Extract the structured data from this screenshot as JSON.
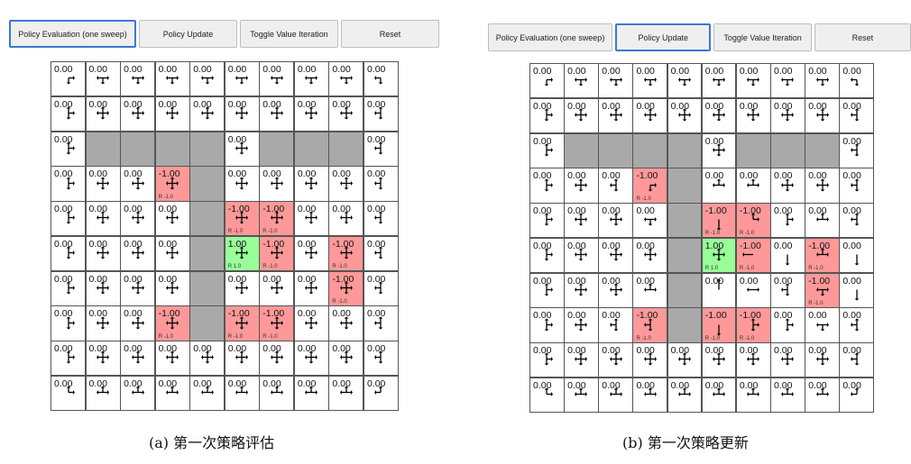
{
  "panels": [
    {
      "buttons": [
        "Policy Evaluation (one sweep)",
        "Policy Update",
        "Toggle Value Iteration",
        "Reset"
      ],
      "active_button": 0,
      "caption": "(a) 第一次策略评估",
      "types": [
        "nnnnnnnnnn",
        "nnnnnnnnnn",
        "nwwwwnwwwn",
        "nnnrwnnnnn",
        "nnnnwrrnnn",
        "nnnnwgrnrn",
        "nnnnwnnnrn",
        "nnnrwrrnnn",
        "nnnnnnnnnn",
        "nnnnnnnnnn"
      ],
      "values": [
        [
          "0.00",
          "0.00",
          "0.00",
          "0.00",
          "0.00",
          "0.00",
          "0.00",
          "0.00",
          "0.00",
          "0.00"
        ],
        [
          "0.00",
          "0.00",
          "0.00",
          "0.00",
          "0.00",
          "0.00",
          "0.00",
          "0.00",
          "0.00",
          "0.00"
        ],
        [
          "0.00",
          "",
          "",
          "",
          "",
          "0.00",
          "",
          "",
          "",
          "0.00"
        ],
        [
          "0.00",
          "0.00",
          "0.00",
          "-1.00",
          "",
          "0.00",
          "0.00",
          "0.00",
          "0.00",
          "0.00"
        ],
        [
          "0.00",
          "0.00",
          "0.00",
          "0.00",
          "",
          "-1.00",
          "-1.00",
          "0.00",
          "0.00",
          "0.00"
        ],
        [
          "0.00",
          "0.00",
          "0.00",
          "0.00",
          "",
          "1.00",
          "-1.00",
          "0.00",
          "-1.00",
          "0.00"
        ],
        [
          "0.00",
          "0.00",
          "0.00",
          "0.00",
          "",
          "0.00",
          "0.00",
          "0.00",
          "-1.00",
          "0.00"
        ],
        [
          "0.00",
          "0.00",
          "0.00",
          "-1.00",
          "",
          "-1.00",
          "-1.00",
          "0.00",
          "0.00",
          "0.00"
        ],
        [
          "0.00",
          "0.00",
          "0.00",
          "0.00",
          "0.00",
          "0.00",
          "0.00",
          "0.00",
          "0.00",
          "0.00"
        ],
        [
          "0.00",
          "0.00",
          "0.00",
          "0.00",
          "0.00",
          "0.00",
          "0.00",
          "0.00",
          "0.00",
          "0.00"
        ]
      ],
      "rewards": [
        [
          "",
          "",
          "",
          "",
          "",
          "",
          "",
          "",
          "",
          ""
        ],
        [
          "",
          "",
          "",
          "",
          "",
          "",
          "",
          "",
          "",
          ""
        ],
        [
          "",
          "",
          "",
          "",
          "",
          "",
          "",
          "",
          "",
          ""
        ],
        [
          "",
          "",
          "",
          "R -1.0",
          "",
          "",
          "",
          "",
          "",
          ""
        ],
        [
          "",
          "",
          "",
          "",
          "",
          "R -1.0",
          "R -1.0",
          "",
          "",
          ""
        ],
        [
          "",
          "",
          "",
          "",
          "",
          "R 1.0",
          "R -1.0",
          "",
          "R -1.0",
          ""
        ],
        [
          "",
          "",
          "",
          "",
          "",
          "",
          "",
          "",
          "R -1.0",
          ""
        ],
        [
          "",
          "",
          "",
          "R -1.0",
          "",
          "R -1.0",
          "R -1.0",
          "",
          "",
          ""
        ],
        [
          "",
          "",
          "",
          "",
          "",
          "",
          "",
          "",
          "",
          ""
        ],
        [
          "",
          "",
          "",
          "",
          "",
          "",
          "",
          "",
          "",
          ""
        ]
      ],
      "arrows": [
        [
          "dr",
          "dlr",
          "dlr",
          "dlr",
          "dlr",
          "dlr",
          "dlr",
          "dlr",
          "dlr",
          "dl"
        ],
        [
          "udr",
          "udlr",
          "udlr",
          "udlr",
          "udlr",
          "udlr",
          "udlr",
          "udlr",
          "udlr",
          "udl"
        ],
        [
          "udr",
          "",
          "",
          "",
          "",
          "udlr",
          "",
          "",
          "",
          "udl"
        ],
        [
          "udr",
          "udlr",
          "udlr",
          "udlr",
          "",
          "udlr",
          "udlr",
          "udlr",
          "udlr",
          "udl"
        ],
        [
          "udr",
          "udlr",
          "udlr",
          "udlr",
          "",
          "udlr",
          "udlr",
          "udlr",
          "udlr",
          "udl"
        ],
        [
          "udr",
          "udlr",
          "udlr",
          "udlr",
          "",
          "udlr",
          "udlr",
          "udlr",
          "udlr",
          "udl"
        ],
        [
          "udr",
          "udlr",
          "udlr",
          "udlr",
          "",
          "udlr",
          "udlr",
          "udlr",
          "udlr",
          "udl"
        ],
        [
          "udr",
          "udlr",
          "udlr",
          "udlr",
          "",
          "udlr",
          "udlr",
          "udlr",
          "udlr",
          "udl"
        ],
        [
          "udr",
          "udlr",
          "udlr",
          "udlr",
          "udlr",
          "udlr",
          "udlr",
          "udlr",
          "udlr",
          "udl"
        ],
        [
          "ur",
          "ulr",
          "ulr",
          "ulr",
          "ulr",
          "ulr",
          "ulr",
          "ulr",
          "ulr",
          "ul"
        ]
      ]
    },
    {
      "buttons": [
        "Policy Evaluation (one sweep)",
        "Policy Update",
        "Toggle Value Iteration",
        "Reset"
      ],
      "active_button": 1,
      "caption": "(b) 第一次策略更新",
      "types": [
        "nnnnnnnnnn",
        "nnnnnnnnnn",
        "nwwwwnwwwn",
        "nnnrwnnnnn",
        "nnnnwrrnnn",
        "nnnnwgrnrn",
        "nnnnwnnnrn",
        "nnnrwrrnnn",
        "nnnnnnnnnn",
        "nnnnnnnnnn"
      ],
      "values": [
        [
          "0.00",
          "0.00",
          "0.00",
          "0.00",
          "0.00",
          "0.00",
          "0.00",
          "0.00",
          "0.00",
          "0.00"
        ],
        [
          "0.00",
          "0.00",
          "0.00",
          "0.00",
          "0.00",
          "0.00",
          "0.00",
          "0.00",
          "0.00",
          "0.00"
        ],
        [
          "0.00",
          "",
          "",
          "",
          "",
          "0.00",
          "",
          "",
          "",
          "0.00"
        ],
        [
          "0.00",
          "0.00",
          "0.00",
          "-1.00",
          "",
          "0.00",
          "0.00",
          "0.00",
          "0.00",
          "0.00"
        ],
        [
          "0.00",
          "0.00",
          "0.00",
          "0.00",
          "",
          "-1.00",
          "-1.00",
          "0.00",
          "0.00",
          "0.00"
        ],
        [
          "0.00",
          "0.00",
          "0.00",
          "0.00",
          "",
          "1.00",
          "-1.00",
          "0.00",
          "-1.00",
          "0.00"
        ],
        [
          "0.00",
          "0.00",
          "0.00",
          "0.00",
          "",
          "0.00",
          "0.00",
          "0.00",
          "-1.00",
          "0.00"
        ],
        [
          "0.00",
          "0.00",
          "0.00",
          "-1.00",
          "",
          "-1.00",
          "-1.00",
          "0.00",
          "0.00",
          "0.00"
        ],
        [
          "0.00",
          "0.00",
          "0.00",
          "0.00",
          "0.00",
          "0.00",
          "0.00",
          "0.00",
          "0.00",
          "0.00"
        ],
        [
          "0.00",
          "0.00",
          "0.00",
          "0.00",
          "0.00",
          "0.00",
          "0.00",
          "0.00",
          "0.00",
          "0.00"
        ]
      ],
      "rewards": [
        [
          "",
          "",
          "",
          "",
          "",
          "",
          "",
          "",
          "",
          ""
        ],
        [
          "",
          "",
          "",
          "",
          "",
          "",
          "",
          "",
          "",
          ""
        ],
        [
          "",
          "",
          "",
          "",
          "",
          "",
          "",
          "",
          "",
          ""
        ],
        [
          "",
          "",
          "",
          "R -1.0",
          "",
          "",
          "",
          "",
          "",
          ""
        ],
        [
          "",
          "",
          "",
          "",
          "",
          "R -1.0",
          "R -1.0",
          "",
          "",
          ""
        ],
        [
          "",
          "",
          "",
          "",
          "",
          "R 1.0",
          "R -1.0",
          "",
          "R -1.0",
          ""
        ],
        [
          "",
          "",
          "",
          "",
          "",
          "",
          "",
          "",
          "R -1.0",
          ""
        ],
        [
          "",
          "",
          "",
          "R -1.0",
          "",
          "R -1.0",
          "R -1.0",
          "",
          "",
          ""
        ],
        [
          "",
          "",
          "",
          "",
          "",
          "",
          "",
          "",
          "",
          ""
        ],
        [
          "",
          "",
          "",
          "",
          "",
          "",
          "",
          "",
          "",
          ""
        ]
      ],
      "arrows": [
        [
          "dr",
          "dlr",
          "dlr",
          "dlr",
          "dlr",
          "dlr",
          "dlr",
          "dlr",
          "dlr",
          "dl"
        ],
        [
          "udr",
          "udlr",
          "udlr",
          "udlr",
          "udlr",
          "udlr",
          "udlr",
          "udlr",
          "udlr",
          "udl"
        ],
        [
          "udr",
          "",
          "",
          "",
          "",
          "udlr",
          "",
          "",
          "",
          "udl"
        ],
        [
          "udr",
          "udlr",
          "udl",
          "dr",
          "",
          "ulr",
          "ulr",
          "udlr",
          "udlr",
          "udl"
        ],
        [
          "udr",
          "udlr",
          "udlr",
          "dlr",
          "",
          "d",
          "ur",
          "udr",
          "ulr",
          "udl"
        ],
        [
          "udr",
          "udlr",
          "udlr",
          "udlr",
          "",
          "udlr",
          "l",
          "d",
          "ulr",
          "d"
        ],
        [
          "udr",
          "udlr",
          "udlr",
          "ulr",
          "",
          "u",
          "lr",
          "udl",
          "dlr",
          "d"
        ],
        [
          "udr",
          "udlr",
          "udl",
          "udl",
          "",
          "d",
          "udr",
          "udr",
          "dlr",
          "udl"
        ],
        [
          "udr",
          "udlr",
          "udlr",
          "udlr",
          "udlr",
          "udlr",
          "udlr",
          "udlr",
          "udlr",
          "udl"
        ],
        [
          "ur",
          "ulr",
          "ulr",
          "ulr",
          "ulr",
          "ulr",
          "ulr",
          "ulr",
          "ulr",
          "ul"
        ]
      ]
    }
  ]
}
